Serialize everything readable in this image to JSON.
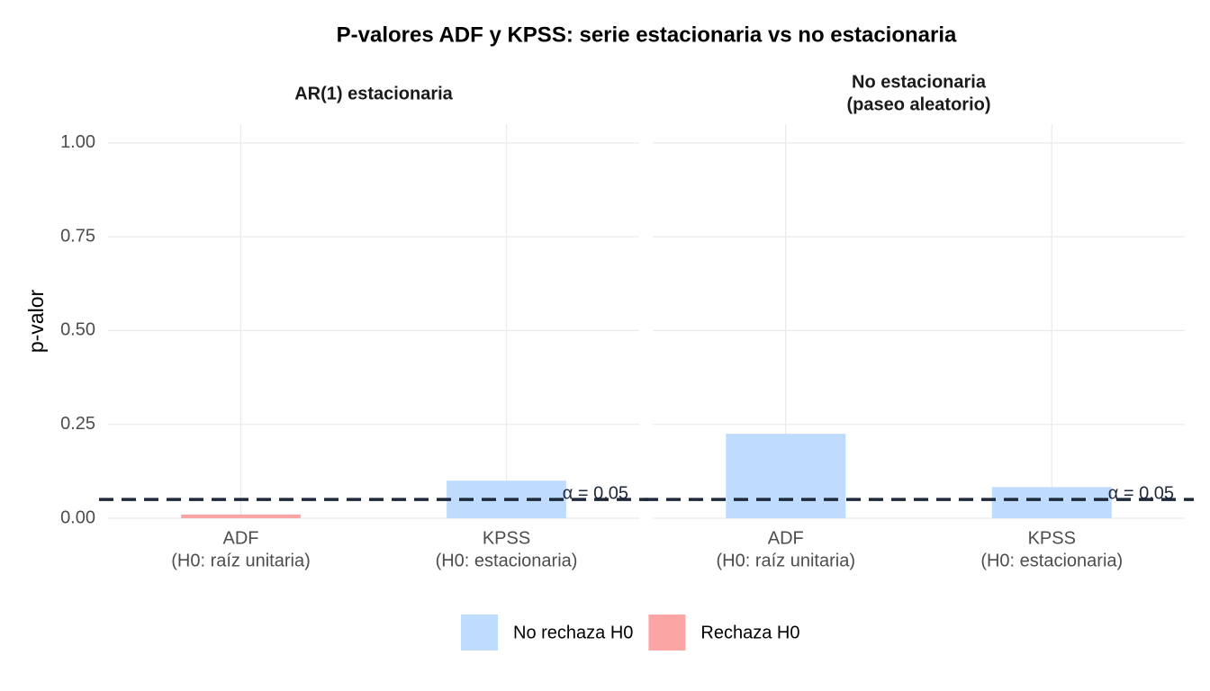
{
  "chart_data": {
    "type": "bar",
    "title": "P-valores ADF y KPSS: serie estacionaria vs no estacionaria",
    "ylabel": "p-valor",
    "ylim": [
      0,
      1.05
    ],
    "yticks": [
      {
        "value": 0,
        "label": "0.00"
      },
      {
        "value": 0.25,
        "label": "0.25"
      },
      {
        "value": 0.5,
        "label": "0.50"
      },
      {
        "value": 0.75,
        "label": "0.75"
      },
      {
        "value": 1,
        "label": "1.00"
      }
    ],
    "grid": true,
    "legend": "bottom",
    "series": [
      {
        "name": "No rechaza H0",
        "color": "#bfdbfe"
      },
      {
        "name": "Rechaza H0",
        "color": "#fca5a5"
      }
    ],
    "hline": {
      "value": 0.05,
      "label": "α = 0,05",
      "color": "#1e293b"
    },
    "facets": [
      {
        "title": "AR(1) estacionaria",
        "categories": [
          "ADF\n(H0: raíz unitaria)",
          "KPSS\n(H0: estacionaria)"
        ],
        "series": [
          {
            "values": [
              null,
              0.1
            ]
          },
          {
            "values": [
              0.01,
              null
            ]
          }
        ]
      },
      {
        "title": "No estacionaria\n(paseo aleatorio)",
        "categories": [
          "ADF\n(H0: raíz unitaria)",
          "KPSS\n(H0: estacionaria)"
        ],
        "series": [
          {
            "values": [
              0.225,
              0.083
            ]
          },
          {
            "values": [
              null,
              null
            ]
          }
        ]
      }
    ]
  }
}
